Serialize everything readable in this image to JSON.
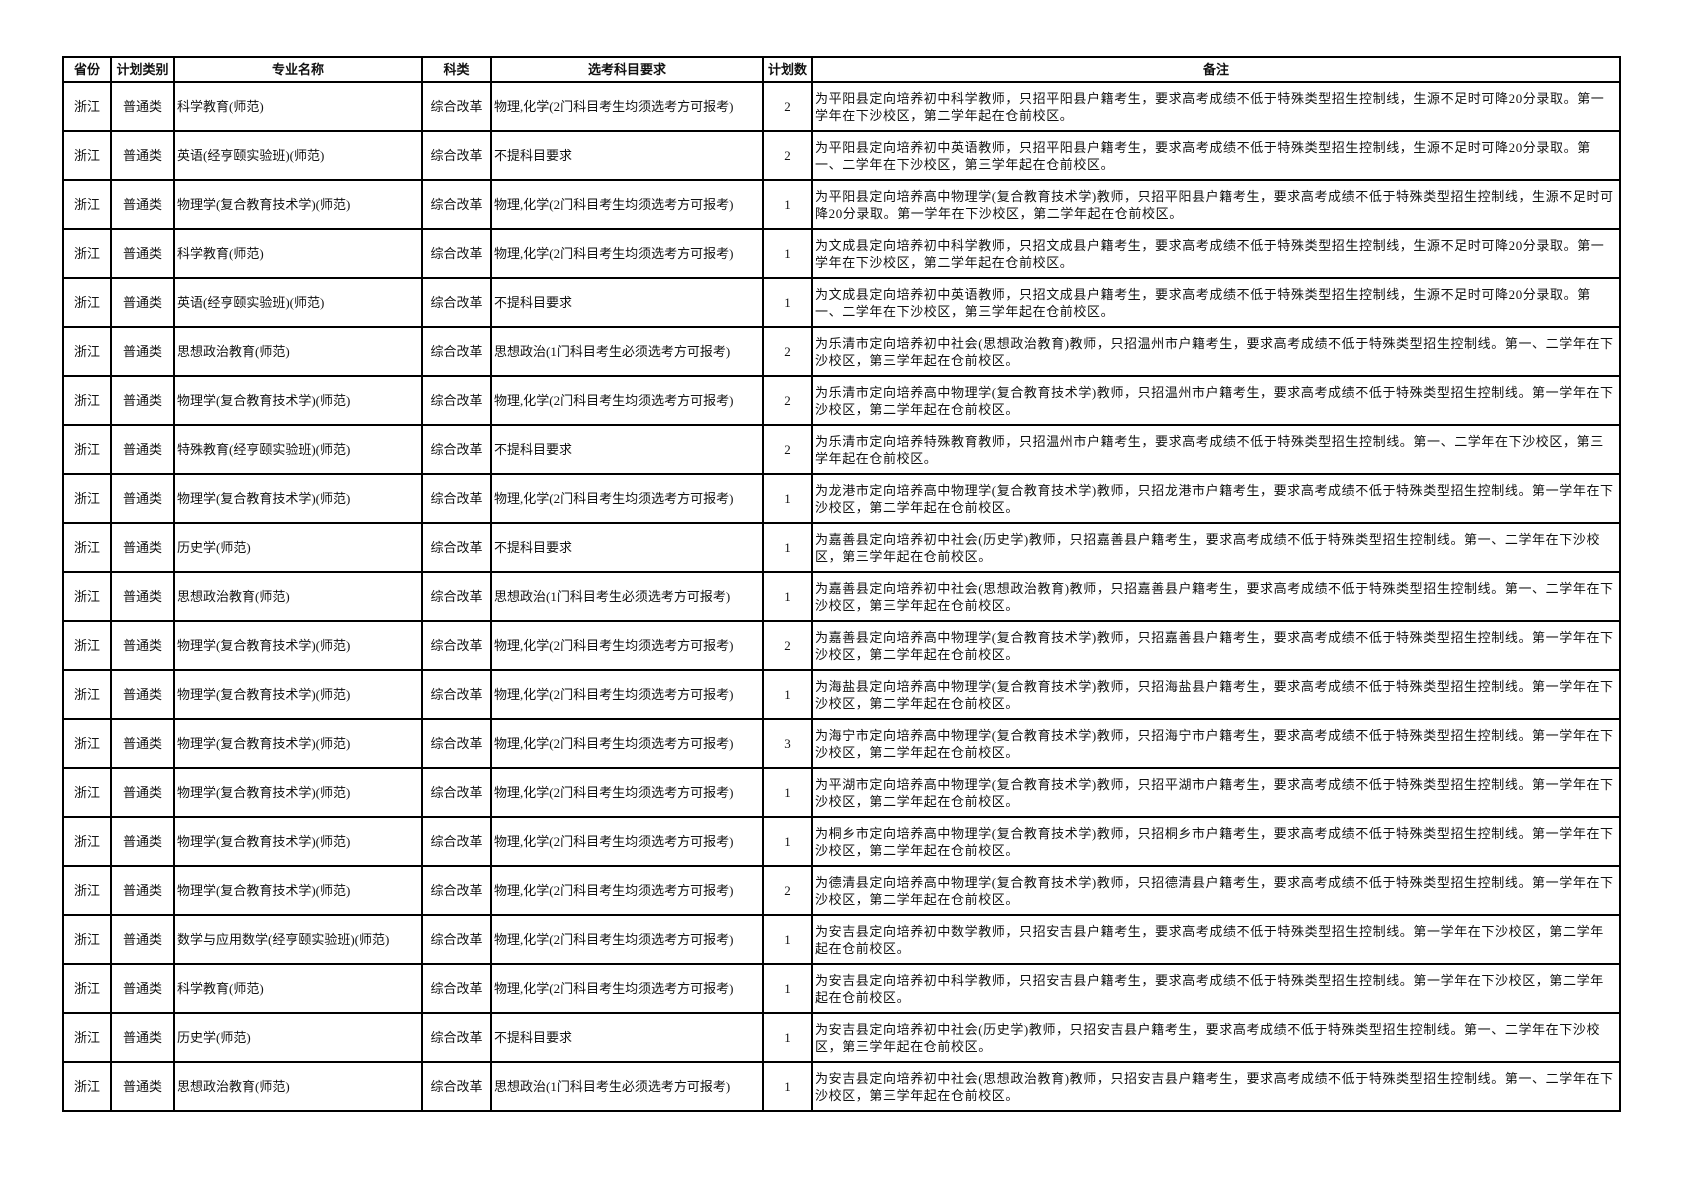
{
  "headers": [
    "省份",
    "计划类别",
    "专业名称",
    "科类",
    "选考科目要求",
    "计划数",
    "备注"
  ],
  "rows": [
    {
      "province": "浙江",
      "plan_type": "普通类",
      "major": "科学教育(师范)",
      "category": "综合改革",
      "subject_req": "物理,化学(2门科目考生均须选考方可报考)",
      "count": "2",
      "remark": "为平阳县定向培养初中科学教师，只招平阳县户籍考生，要求高考成绩不低于特殊类型招生控制线，生源不足时可降20分录取。第一学年在下沙校区，第二学年起在仓前校区。"
    },
    {
      "province": "浙江",
      "plan_type": "普通类",
      "major": "英语(经亨颐实验班)(师范)",
      "category": "综合改革",
      "subject_req": "不提科目要求",
      "count": "2",
      "remark": "为平阳县定向培养初中英语教师，只招平阳县户籍考生，要求高考成绩不低于特殊类型招生控制线，生源不足时可降20分录取。第一、二学年在下沙校区，第三学年起在仓前校区。"
    },
    {
      "province": "浙江",
      "plan_type": "普通类",
      "major": "物理学(复合教育技术学)(师范)",
      "category": "综合改革",
      "subject_req": "物理,化学(2门科目考生均须选考方可报考)",
      "count": "1",
      "remark": "为平阳县定向培养高中物理学(复合教育技术学)教师，只招平阳县户籍考生，要求高考成绩不低于特殊类型招生控制线，生源不足时可降20分录取。第一学年在下沙校区，第二学年起在仓前校区。"
    },
    {
      "province": "浙江",
      "plan_type": "普通类",
      "major": "科学教育(师范)",
      "category": "综合改革",
      "subject_req": "物理,化学(2门科目考生均须选考方可报考)",
      "count": "1",
      "remark": "为文成县定向培养初中科学教师，只招文成县户籍考生，要求高考成绩不低于特殊类型招生控制线，生源不足时可降20分录取。第一学年在下沙校区，第二学年起在仓前校区。"
    },
    {
      "province": "浙江",
      "plan_type": "普通类",
      "major": "英语(经亨颐实验班)(师范)",
      "category": "综合改革",
      "subject_req": "不提科目要求",
      "count": "1",
      "remark": "为文成县定向培养初中英语教师，只招文成县户籍考生，要求高考成绩不低于特殊类型招生控制线，生源不足时可降20分录取。第一、二学年在下沙校区，第三学年起在仓前校区。"
    },
    {
      "province": "浙江",
      "plan_type": "普通类",
      "major": "思想政治教育(师范)",
      "category": "综合改革",
      "subject_req": "思想政治(1门科目考生必须选考方可报考)",
      "count": "2",
      "remark": "为乐清市定向培养初中社会(思想政治教育)教师，只招温州市户籍考生，要求高考成绩不低于特殊类型招生控制线。第一、二学年在下沙校区，第三学年起在仓前校区。"
    },
    {
      "province": "浙江",
      "plan_type": "普通类",
      "major": "物理学(复合教育技术学)(师范)",
      "category": "综合改革",
      "subject_req": "物理,化学(2门科目考生均须选考方可报考)",
      "count": "2",
      "remark": "为乐清市定向培养高中物理学(复合教育技术学)教师，只招温州市户籍考生，要求高考成绩不低于特殊类型招生控制线。第一学年在下沙校区，第二学年起在仓前校区。"
    },
    {
      "province": "浙江",
      "plan_type": "普通类",
      "major": "特殊教育(经亨颐实验班)(师范)",
      "category": "综合改革",
      "subject_req": "不提科目要求",
      "count": "2",
      "remark": "为乐清市定向培养特殊教育教师，只招温州市户籍考生，要求高考成绩不低于特殊类型招生控制线。第一、二学年在下沙校区，第三学年起在仓前校区。"
    },
    {
      "province": "浙江",
      "plan_type": "普通类",
      "major": "物理学(复合教育技术学)(师范)",
      "category": "综合改革",
      "subject_req": "物理,化学(2门科目考生均须选考方可报考)",
      "count": "1",
      "remark": "为龙港市定向培养高中物理学(复合教育技术学)教师，只招龙港市户籍考生，要求高考成绩不低于特殊类型招生控制线。第一学年在下沙校区，第二学年起在仓前校区。"
    },
    {
      "province": "浙江",
      "plan_type": "普通类",
      "major": "历史学(师范)",
      "category": "综合改革",
      "subject_req": "不提科目要求",
      "count": "1",
      "remark": "为嘉善县定向培养初中社会(历史学)教师，只招嘉善县户籍考生，要求高考成绩不低于特殊类型招生控制线。第一、二学年在下沙校区，第三学年起在仓前校区。"
    },
    {
      "province": "浙江",
      "plan_type": "普通类",
      "major": "思想政治教育(师范)",
      "category": "综合改革",
      "subject_req": "思想政治(1门科目考生必须选考方可报考)",
      "count": "1",
      "remark": "为嘉善县定向培养初中社会(思想政治教育)教师，只招嘉善县户籍考生，要求高考成绩不低于特殊类型招生控制线。第一、二学年在下沙校区，第三学年起在仓前校区。"
    },
    {
      "province": "浙江",
      "plan_type": "普通类",
      "major": "物理学(复合教育技术学)(师范)",
      "category": "综合改革",
      "subject_req": "物理,化学(2门科目考生均须选考方可报考)",
      "count": "2",
      "remark": "为嘉善县定向培养高中物理学(复合教育技术学)教师，只招嘉善县户籍考生，要求高考成绩不低于特殊类型招生控制线。第一学年在下沙校区，第二学年起在仓前校区。"
    },
    {
      "province": "浙江",
      "plan_type": "普通类",
      "major": "物理学(复合教育技术学)(师范)",
      "category": "综合改革",
      "subject_req": "物理,化学(2门科目考生均须选考方可报考)",
      "count": "1",
      "remark": "为海盐县定向培养高中物理学(复合教育技术学)教师，只招海盐县户籍考生，要求高考成绩不低于特殊类型招生控制线。第一学年在下沙校区，第二学年起在仓前校区。"
    },
    {
      "province": "浙江",
      "plan_type": "普通类",
      "major": "物理学(复合教育技术学)(师范)",
      "category": "综合改革",
      "subject_req": "物理,化学(2门科目考生均须选考方可报考)",
      "count": "3",
      "remark": "为海宁市定向培养高中物理学(复合教育技术学)教师，只招海宁市户籍考生，要求高考成绩不低于特殊类型招生控制线。第一学年在下沙校区，第二学年起在仓前校区。"
    },
    {
      "province": "浙江",
      "plan_type": "普通类",
      "major": "物理学(复合教育技术学)(师范)",
      "category": "综合改革",
      "subject_req": "物理,化学(2门科目考生均须选考方可报考)",
      "count": "1",
      "remark": "为平湖市定向培养高中物理学(复合教育技术学)教师，只招平湖市户籍考生，要求高考成绩不低于特殊类型招生控制线。第一学年在下沙校区，第二学年起在仓前校区。"
    },
    {
      "province": "浙江",
      "plan_type": "普通类",
      "major": "物理学(复合教育技术学)(师范)",
      "category": "综合改革",
      "subject_req": "物理,化学(2门科目考生均须选考方可报考)",
      "count": "1",
      "remark": "为桐乡市定向培养高中物理学(复合教育技术学)教师，只招桐乡市户籍考生，要求高考成绩不低于特殊类型招生控制线。第一学年在下沙校区，第二学年起在仓前校区。"
    },
    {
      "province": "浙江",
      "plan_type": "普通类",
      "major": "物理学(复合教育技术学)(师范)",
      "category": "综合改革",
      "subject_req": "物理,化学(2门科目考生均须选考方可报考)",
      "count": "2",
      "remark": "为德清县定向培养高中物理学(复合教育技术学)教师，只招德清县户籍考生，要求高考成绩不低于特殊类型招生控制线。第一学年在下沙校区，第二学年起在仓前校区。"
    },
    {
      "province": "浙江",
      "plan_type": "普通类",
      "major": "数学与应用数学(经亨颐实验班)(师范)",
      "category": "综合改革",
      "subject_req": "物理,化学(2门科目考生均须选考方可报考)",
      "count": "1",
      "remark": "为安吉县定向培养初中数学教师，只招安吉县户籍考生，要求高考成绩不低于特殊类型招生控制线。第一学年在下沙校区，第二学年起在仓前校区。"
    },
    {
      "province": "浙江",
      "plan_type": "普通类",
      "major": "科学教育(师范)",
      "category": "综合改革",
      "subject_req": "物理,化学(2门科目考生均须选考方可报考)",
      "count": "1",
      "remark": "为安吉县定向培养初中科学教师，只招安吉县户籍考生，要求高考成绩不低于特殊类型招生控制线。第一学年在下沙校区，第二学年起在仓前校区。"
    },
    {
      "province": "浙江",
      "plan_type": "普通类",
      "major": "历史学(师范)",
      "category": "综合改革",
      "subject_req": "不提科目要求",
      "count": "1",
      "remark": "为安吉县定向培养初中社会(历史学)教师，只招安吉县户籍考生，要求高考成绩不低于特殊类型招生控制线。第一、二学年在下沙校区，第三学年起在仓前校区。"
    },
    {
      "province": "浙江",
      "plan_type": "普通类",
      "major": "思想政治教育(师范)",
      "category": "综合改革",
      "subject_req": "思想政治(1门科目考生必须选考方可报考)",
      "count": "1",
      "remark": "为安吉县定向培养初中社会(思想政治教育)教师，只招安吉县户籍考生，要求高考成绩不低于特殊类型招生控制线。第一、二学年在下沙校区，第三学年起在仓前校区。"
    }
  ]
}
